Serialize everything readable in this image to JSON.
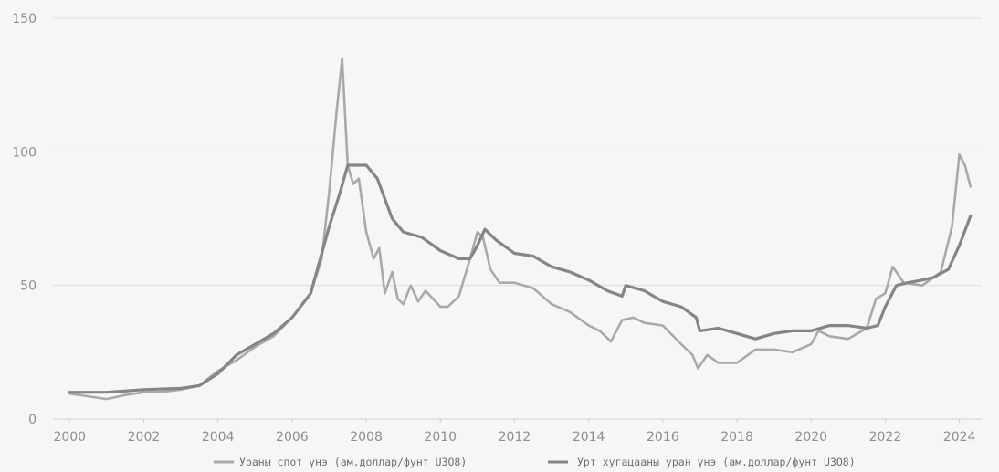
{
  "chart_data": {
    "type": "line",
    "title": "",
    "xlabel": "",
    "ylabel": "",
    "xlim": [
      1999.55,
      2024.6
    ],
    "ylim": [
      0,
      150
    ],
    "x_ticks": [
      2000,
      2002,
      2004,
      2006,
      2008,
      2010,
      2012,
      2014,
      2016,
      2018,
      2020,
      2022,
      2024
    ],
    "x_tick_labels": [
      "2000",
      "2002",
      "2004",
      "2006",
      "2008",
      "2010",
      "2012",
      "2014",
      "2016",
      "2018",
      "2020",
      "2022",
      "2024"
    ],
    "y_ticks": [
      0,
      50,
      100,
      150
    ],
    "y_tick_labels": [
      "0",
      "50",
      "100",
      "150"
    ],
    "grid": "horizontal",
    "legend_position": "bottom",
    "series": [
      {
        "name": "Ураны спот үнэ (ам.доллар/фунт U3O8)",
        "color": "#a9a9a9",
        "x": [
          2000.0,
          2000.5,
          2001.0,
          2001.5,
          2002.0,
          2002.5,
          2003.0,
          2003.5,
          2004.0,
          2004.5,
          2005.0,
          2005.5,
          2006.0,
          2006.5,
          2006.8,
          2007.0,
          2007.2,
          2007.35,
          2007.5,
          2007.65,
          2007.8,
          2008.0,
          2008.2,
          2008.35,
          2008.5,
          2008.7,
          2008.85,
          2009.0,
          2009.2,
          2009.4,
          2009.6,
          2009.8,
          2010.0,
          2010.2,
          2010.5,
          2010.8,
          2011.0,
          2011.15,
          2011.35,
          2011.6,
          2012.0,
          2012.5,
          2013.0,
          2013.5,
          2014.0,
          2014.3,
          2014.6,
          2014.9,
          2015.2,
          2015.5,
          2016.0,
          2016.5,
          2016.8,
          2016.95,
          2017.2,
          2017.5,
          2018.0,
          2018.5,
          2019.0,
          2019.5,
          2020.0,
          2020.2,
          2020.5,
          2021.0,
          2021.5,
          2021.75,
          2022.0,
          2022.2,
          2022.5,
          2023.0,
          2023.5,
          2023.8,
          2024.0,
          2024.15,
          2024.3
        ],
        "values": [
          9.5,
          8.5,
          7.5,
          9.0,
          10.0,
          10.2,
          11.0,
          12.5,
          18.0,
          22.0,
          27.0,
          31.0,
          38.0,
          47.0,
          60.0,
          85.0,
          115.0,
          135.0,
          95.0,
          88.0,
          90.0,
          70.0,
          60.0,
          64.0,
          47.0,
          55.0,
          45.0,
          43.0,
          50.0,
          44.0,
          48.0,
          45.0,
          42.0,
          42.0,
          46.0,
          60.0,
          70.0,
          68.0,
          56.0,
          51.0,
          51.0,
          49.0,
          43.0,
          40.0,
          35.0,
          33.0,
          29.0,
          37.0,
          38.0,
          36.0,
          35.0,
          28.0,
          24.0,
          19.0,
          24.0,
          21.0,
          21.0,
          26.0,
          26.0,
          25.0,
          28.0,
          33.0,
          31.0,
          30.0,
          34.0,
          45.0,
          47.0,
          57.0,
          51.0,
          50.0,
          55.0,
          72.0,
          99.0,
          95.0,
          87.0
        ]
      },
      {
        "name": "Урт хугацааны уран үнэ (ам.доллар/фунт U3O8)",
        "color": "#858585",
        "x": [
          2000.0,
          2001.0,
          2002.0,
          2003.0,
          2003.5,
          2004.0,
          2004.5,
          2005.0,
          2005.5,
          2006.0,
          2006.5,
          2007.0,
          2007.3,
          2007.5,
          2008.0,
          2008.3,
          2008.7,
          2009.0,
          2009.5,
          2010.0,
          2010.5,
          2010.8,
          2011.0,
          2011.2,
          2011.5,
          2012.0,
          2012.5,
          2013.0,
          2013.5,
          2014.0,
          2014.5,
          2014.9,
          2015.0,
          2015.5,
          2016.0,
          2016.5,
          2016.9,
          2017.0,
          2017.5,
          2018.0,
          2018.5,
          2019.0,
          2019.5,
          2020.0,
          2020.5,
          2021.0,
          2021.5,
          2021.8,
          2022.0,
          2022.3,
          2022.6,
          2023.0,
          2023.3,
          2023.7,
          2024.0,
          2024.3
        ],
        "values": [
          10.0,
          10.0,
          11.0,
          11.5,
          12.5,
          17.0,
          24.0,
          28.0,
          32.0,
          38.0,
          47.0,
          72.0,
          85.0,
          95.0,
          95.0,
          90.0,
          75.0,
          70.0,
          68.0,
          63.0,
          60.0,
          60.0,
          65.0,
          71.0,
          67.0,
          62.0,
          61.0,
          57.0,
          55.0,
          52.0,
          48.0,
          46.0,
          50.0,
          48.0,
          44.0,
          42.0,
          38.0,
          33.0,
          34.0,
          32.0,
          30.0,
          32.0,
          33.0,
          33.0,
          35.0,
          35.0,
          34.0,
          35.0,
          42.0,
          50.0,
          51.0,
          52.0,
          53.0,
          56.0,
          65.0,
          76.0
        ]
      }
    ]
  }
}
